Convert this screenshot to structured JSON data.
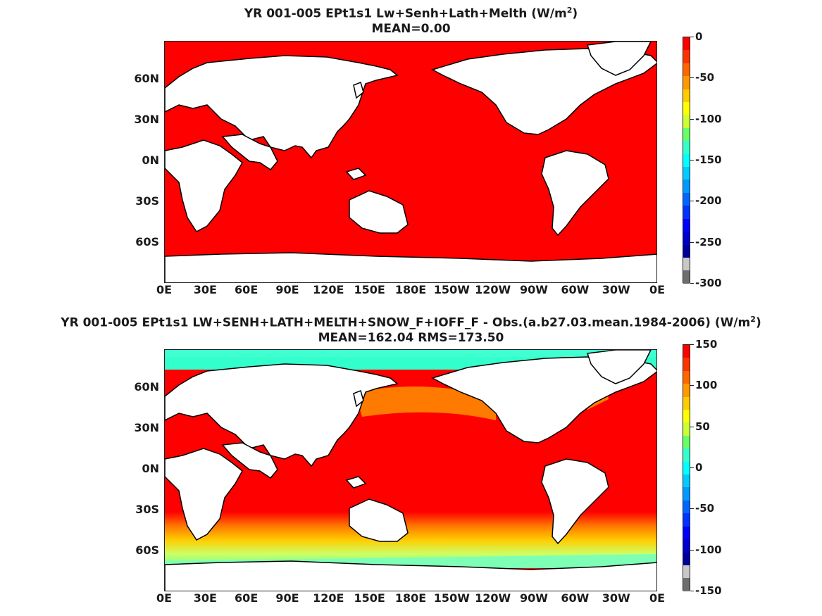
{
  "panels": [
    {
      "title_line1_prefix": "YR 001-005 EPt1s1 Lw+Senh+Lath+Melth (W/m",
      "title_line1_sup": "2",
      "title_line1_suffix": ")",
      "title_line2": "MEAN=0.00",
      "colorbar_labels": [
        "0",
        "-50",
        "-100",
        "-150",
        "-200",
        "-250",
        "-300"
      ]
    },
    {
      "title_line1_prefix": "YR 001-005 EPt1s1 LW+SENH+LATH+MELTH+SNOW_F+IOFF_F - Obs.(a.b27.03.mean.1984-2006) (W/m",
      "title_line1_sup": "2",
      "title_line1_suffix": ")",
      "title_line2": "MEAN=162.04 RMS=173.50",
      "colorbar_labels": [
        "150",
        "100",
        "50",
        "0",
        "-50",
        "-100",
        "-150"
      ]
    }
  ],
  "lat_labels": [
    "60N",
    "30N",
    "0N",
    "30S",
    "60S"
  ],
  "lon_labels": [
    "0E",
    "30E",
    "60E",
    "90E",
    "120E",
    "150E",
    "180E",
    "150W",
    "120W",
    "90W",
    "60W",
    "30W",
    "0E"
  ],
  "colorbar_colors": [
    "#ff0000",
    "#ff3300",
    "#ff6600",
    "#ff9900",
    "#ffcc00",
    "#ffff00",
    "#ccff33",
    "#66ff66",
    "#33ffcc",
    "#00ffff",
    "#00ccff",
    "#0099ff",
    "#0066ff",
    "#0033ff",
    "#0000ff",
    "#0000cc",
    "#000099",
    "#c8c8c8",
    "#6e6e6e"
  ],
  "colors": {
    "ocean_top": "#ff0000",
    "land": "#ffffff",
    "coast": "#000000"
  }
}
